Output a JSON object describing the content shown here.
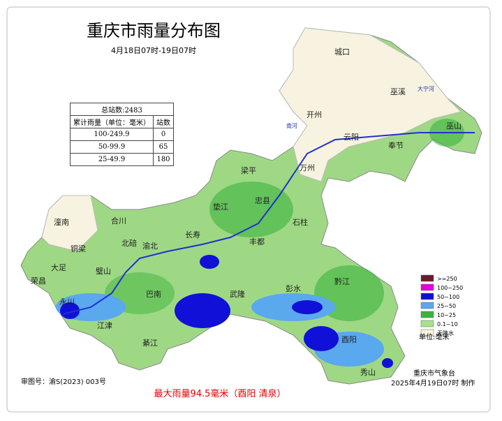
{
  "title": "重庆市雨量分布图",
  "subtitle": "4月18日07时-19日07时",
  "table": {
    "header": "总站数:2483",
    "columns": [
      "累计雨量（单位：毫米）",
      "站数"
    ],
    "rows": [
      [
        "100-249.9",
        "0"
      ],
      [
        "50-99.9",
        "65"
      ],
      [
        "25-49.9",
        "180"
      ]
    ]
  },
  "legend": {
    "items": [
      {
        "label": ">=250",
        "color": "#6b1a2e"
      },
      {
        "label": "100~250",
        "color": "#e000e0"
      },
      {
        "label": "50~100",
        "color": "#1010d8"
      },
      {
        "label": "25~50",
        "color": "#5aa8ee"
      },
      {
        "label": "10~25",
        "color": "#3cb43c"
      },
      {
        "label": "0.1~10",
        "color": "#a6e28c"
      },
      {
        "label": "无降水",
        "color": "#f7f3e0"
      }
    ],
    "unit": "单位:毫米"
  },
  "places": [
    "城口",
    "巫溪",
    "开州",
    "云阳",
    "奉节",
    "巫山",
    "梁平",
    "万州",
    "垫江",
    "忠县",
    "石柱",
    "潼南",
    "合川",
    "铜梁",
    "北碚",
    "渝北",
    "长寿",
    "丰都",
    "大足",
    "璧山",
    "荣昌",
    "永川",
    "江津",
    "巴南",
    "武隆",
    "彭水",
    "黔江",
    "綦江",
    "酉阳",
    "秀山"
  ],
  "rivers": [
    "大宁河",
    "南河"
  ],
  "issuer": "重庆市气象台",
  "issued": "2025年4月19日07时 制作",
  "approval": "审图号：渝S(2023) 003号",
  "max_rain": "最大雨量94.5毫米（酉阳 清泉）"
}
